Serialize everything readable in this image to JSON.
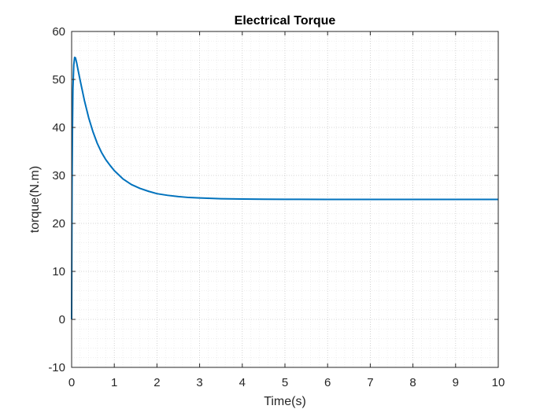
{
  "chart_data": {
    "type": "line",
    "title": "Electrical Torque",
    "xlabel": "Time(s)",
    "ylabel": "torque(N.m)",
    "xlim": [
      0,
      10
    ],
    "ylim": [
      -10,
      60
    ],
    "x_ticks": [
      0,
      1,
      2,
      3,
      4,
      5,
      6,
      7,
      8,
      9,
      10
    ],
    "y_ticks": [
      -10,
      0,
      10,
      20,
      30,
      40,
      50,
      60
    ],
    "grid": "on (major and minor, dotted)",
    "legend": "none",
    "colors": {
      "line": "#0072BD",
      "axes": "#262626",
      "grid": "#c8c8c8",
      "minor_grid": "#e6e6e6"
    },
    "series": [
      {
        "x": [
          0,
          0.005,
          0.01,
          0.02,
          0.03,
          0.05,
          0.07,
          0.09,
          0.12,
          0.15,
          0.2,
          0.3,
          0.4,
          0.5,
          0.6,
          0.7,
          0.8,
          0.9,
          1.0,
          1.2,
          1.4,
          1.6,
          1.8,
          2.0,
          2.25,
          2.5,
          2.75,
          3.0,
          3.5,
          4.0,
          4.5,
          5.0,
          6.0,
          7.0,
          8.0,
          9.0,
          10.0
        ],
        "y": [
          0,
          15,
          28,
          40,
          48,
          53,
          54.6,
          54.5,
          53.4,
          52.0,
          49.8,
          45.6,
          42.0,
          39.1,
          36.7,
          34.8,
          33.3,
          32.1,
          31.0,
          29.3,
          28.1,
          27.3,
          26.7,
          26.2,
          25.85,
          25.6,
          25.4,
          25.3,
          25.15,
          25.08,
          25.04,
          25.02,
          25.0,
          25.0,
          25.0,
          25.0,
          25.0
        ]
      }
    ]
  }
}
